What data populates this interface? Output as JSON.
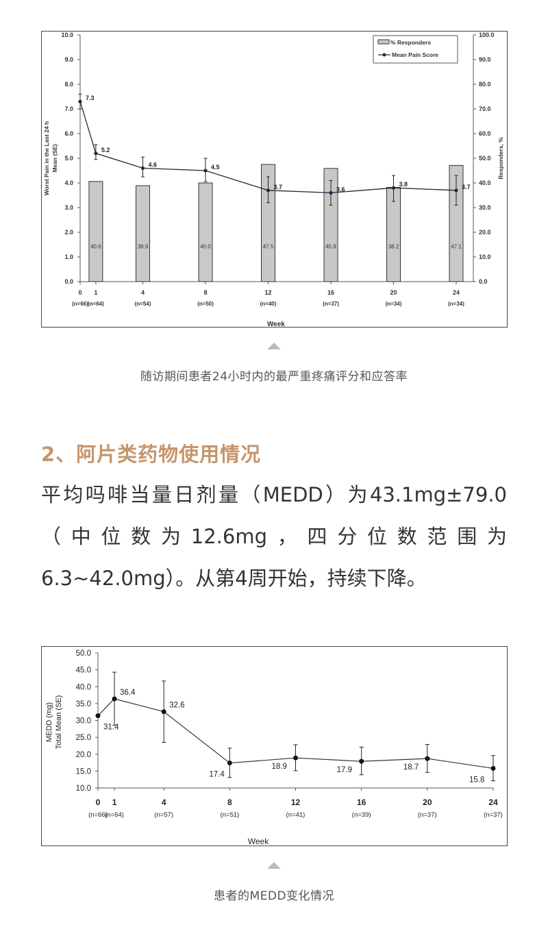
{
  "figure1": {
    "caption": "随访期间患者24小时内的最严重疼痛评分和应答率",
    "chart_data": {
      "type": "bar+line",
      "xlabel": "Week",
      "ylabel_left": [
        "Worst Pain in the Last 24 h",
        "Mean (SE)"
      ],
      "ylabel_right": "Responders, %",
      "ylim_left": [
        0,
        10
      ],
      "ylim_right": [
        0,
        100
      ],
      "yticks_left": [
        "0.0",
        "1.0",
        "2.0",
        "3.0",
        "4.0",
        "5.0",
        "6.0",
        "7.0",
        "8.0",
        "9.0",
        "10.0"
      ],
      "yticks_right": [
        "0.0",
        "10.0",
        "20.0",
        "30.0",
        "40.0",
        "50.0",
        "60.0",
        "70.0",
        "80.0",
        "90.0",
        "100.0"
      ],
      "x_weeks": [
        0,
        1,
        4,
        8,
        12,
        16,
        20,
        24
      ],
      "x_n": [
        "(n=66)",
        "(n=64)",
        "(n=54)",
        "(n=50)",
        "(n=40)",
        "(n=37)",
        "(n=34)",
        "(n=34)"
      ],
      "legend": [
        "% Responders",
        "Mean Pain Score"
      ],
      "legend_position": "top-right",
      "grid": false,
      "series": [
        {
          "name": "% Responders",
          "type": "bar",
          "x": [
            1,
            4,
            8,
            12,
            16,
            20,
            24
          ],
          "values": [
            40.6,
            38.9,
            40.0,
            47.5,
            45.9,
            38.2,
            47.1
          ],
          "labels": [
            "40.6",
            "38.9",
            "40.0",
            "47.5",
            "45.9",
            "38.2",
            "47.1"
          ],
          "color": "#c8c8c8"
        },
        {
          "name": "Mean Pain Score",
          "type": "line",
          "x": [
            0,
            1,
            4,
            8,
            12,
            16,
            20,
            24
          ],
          "values": [
            7.3,
            5.2,
            4.6,
            4.5,
            3.7,
            3.6,
            3.8,
            3.7
          ],
          "labels": [
            "7.3",
            "5.2",
            "4.6",
            "4.5",
            "3.7",
            "3.6",
            "3.8",
            "3.7"
          ],
          "err_low": [
            7.0,
            4.95,
            4.25,
            4.05,
            3.2,
            3.1,
            3.25,
            3.1
          ],
          "err_high": [
            7.6,
            5.55,
            5.05,
            5.0,
            4.25,
            4.1,
            4.3,
            4.3
          ],
          "color": "#1e2a3a"
        }
      ]
    }
  },
  "section": {
    "heading": "2、阿片类药物使用情况",
    "paragraph_lines": [
      "平均吗啡当量日剂量（MEDD）为43.1mg±79.0",
      "（中位数为12.6mg，四分位数范围为",
      "6.3~42.0mg）。从第4周开始，持续下降。"
    ]
  },
  "figure2": {
    "caption": "患者的MEDD变化情况",
    "chart_data": {
      "type": "line",
      "xlabel": "Week",
      "ylabel": [
        "MEDD (mg)",
        "Total Mean (SE)"
      ],
      "ylim": [
        10,
        50
      ],
      "yticks": [
        "10.0",
        "15.0",
        "20.0",
        "25.0",
        "30.0",
        "35.0",
        "40.0",
        "45.0",
        "50.0"
      ],
      "x_weeks": [
        0,
        1,
        4,
        8,
        12,
        16,
        20,
        24
      ],
      "x_n": [
        "(n=66)",
        "(n=64)",
        "(n=57)",
        "(n=51)",
        "(n=41)",
        "(n=39)",
        "(n=37)",
        "(n=37)"
      ],
      "grid": false,
      "series": [
        {
          "type": "line",
          "x": [
            0,
            1,
            4,
            8,
            12,
            16,
            20,
            24
          ],
          "values": [
            31.4,
            36.4,
            32.6,
            17.4,
            18.9,
            17.9,
            18.7,
            15.8
          ],
          "labels": [
            "31.4",
            "36.4",
            "32.6",
            "17.4",
            "18.9",
            "17.9",
            "18.7",
            "15.8"
          ],
          "err_low": [
            null,
            28.6,
            23.5,
            13.1,
            15.1,
            13.9,
            14.6,
            12.1
          ],
          "err_high": [
            null,
            44.3,
            41.7,
            21.8,
            22.8,
            22.1,
            22.9,
            19.6
          ],
          "color": "#111111"
        }
      ]
    }
  }
}
